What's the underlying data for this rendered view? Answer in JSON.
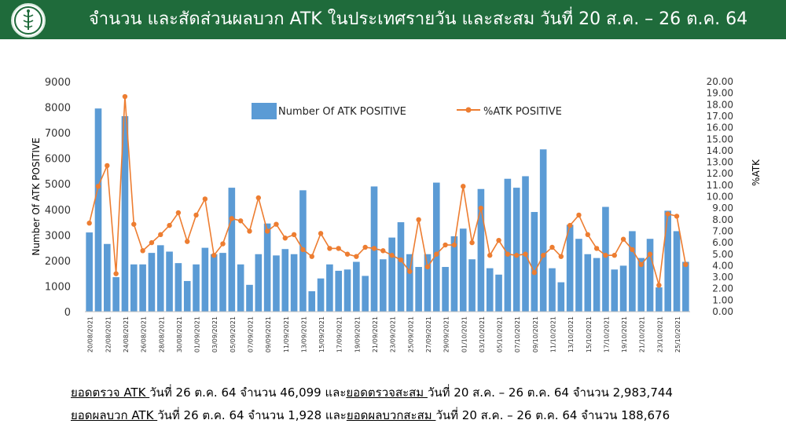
{
  "header": {
    "title": "จำนวน และสัดส่วนผลบวก ATK ในประเทศรายวัน และสะสม วันที่ 20 ส.ค. – 26 ต.ค. 64"
  },
  "summary": {
    "line1": {
      "part1": "ยอดตรวจ ATK ",
      "part2": "วันที่ 26 ต.ค. 64 จำนวน 46,099 และ",
      "part3": "ยอดตรวจสะสม ",
      "part4": "วันที่ 20 ส.ค. – 26 ต.ค. 64 จำนวน 2,983,744"
    },
    "line2": {
      "part1": "ยอดผลบวก ATK ",
      "part2": "วันที่ 26 ต.ค. 64 จำนวน 1,928 และ",
      "part3": "ยอดผลบวกสะสม ",
      "part4": "วันที่ 20 ส.ค. – 26 ต.ค. 64 จำนวน 188,676"
    }
  },
  "chart_data": {
    "type": "bar",
    "xlabel": "",
    "ylabel": "Number Of ATK POSITIVE",
    "y2label": "%ATK",
    "ylim": [
      0,
      9000
    ],
    "y2lim": [
      0,
      20
    ],
    "yticks": [
      "0",
      "1000",
      "2000",
      "3000",
      "4000",
      "5000",
      "6000",
      "7000",
      "8000",
      "9000"
    ],
    "y2ticks": [
      "0.00",
      "1.00",
      "2.00",
      "3.00",
      "4.00",
      "5.00",
      "6.00",
      "7.00",
      "8.00",
      "9.00",
      "10.00",
      "11.00",
      "12.00",
      "13.00",
      "14.00",
      "15.00",
      "16.00",
      "17.00",
      "18.00",
      "19.00",
      "20.00"
    ],
    "legend_position": "top",
    "grid": false,
    "x_tick_labels": [
      "20/08/2021",
      "22/08/2021",
      "24/08/2021",
      "26/08/2021",
      "28/08/2021",
      "30/08/2021",
      "01/09/2021",
      "03/09/2021",
      "05/09/2021",
      "07/09/2021",
      "09/09/2021",
      "11/09/2021",
      "13/09/2021",
      "15/09/2021",
      "17/09/2021",
      "19/09/2021",
      "21/09/2021",
      "23/09/2021",
      "25/09/2021",
      "27/09/2021",
      "29/09/2021",
      "01/10/2021",
      "03/10/2021",
      "05/10/2021",
      "07/10/2021",
      "09/10/2021",
      "11/10/2021",
      "13/10/2021",
      "15/10/2021",
      "17/10/2021",
      "19/10/2021",
      "21/10/2021",
      "23/10/2021",
      "25/10/2021"
    ],
    "series": [
      {
        "name": "Number Of ATK POSITIVE",
        "type": "bar",
        "axis": "left",
        "color": "#5b9bd5",
        "values": [
          3100,
          7950,
          2650,
          1350,
          7650,
          1850,
          1850,
          2300,
          2600,
          2350,
          1900,
          1200,
          1850,
          2500,
          2250,
          2300,
          4850,
          1850,
          1050,
          2250,
          3450,
          2200,
          2450,
          2250,
          4750,
          800,
          1300,
          1850,
          1600,
          1650,
          1950,
          1400,
          4900,
          2050,
          2900,
          3500,
          2250,
          1750,
          2250,
          5050,
          1750,
          2950,
          3250,
          2050,
          4800,
          1700,
          1450,
          5200,
          4850,
          5300,
          3900,
          6350,
          1700,
          1150,
          3400,
          2850,
          2250,
          2100,
          4100,
          1650,
          1800,
          3150,
          2100,
          2850,
          950,
          3950,
          3150,
          1950
        ]
      },
      {
        "name": "%ATK POSITIVE",
        "type": "line",
        "axis": "right",
        "color": "#ed7d31",
        "values": [
          7.7,
          10.9,
          12.7,
          3.3,
          18.7,
          7.6,
          5.3,
          6.0,
          6.7,
          7.5,
          8.6,
          6.1,
          8.4,
          9.8,
          4.9,
          5.9,
          8.1,
          7.9,
          7.0,
          9.9,
          7.0,
          7.6,
          6.4,
          6.7,
          5.4,
          4.8,
          6.8,
          5.5,
          5.5,
          5.0,
          4.8,
          5.6,
          5.5,
          5.3,
          4.9,
          4.5,
          3.5,
          8.0,
          3.9,
          5.0,
          5.8,
          5.8,
          10.9,
          6.0,
          9.0,
          4.9,
          6.2,
          5.0,
          4.9,
          5.0,
          3.4,
          4.9,
          5.6,
          4.8,
          7.5,
          8.4,
          6.7,
          5.5,
          4.9,
          4.9,
          6.3,
          5.4,
          4.1,
          5.0,
          2.3,
          8.5,
          8.3,
          4.1
        ]
      }
    ]
  }
}
